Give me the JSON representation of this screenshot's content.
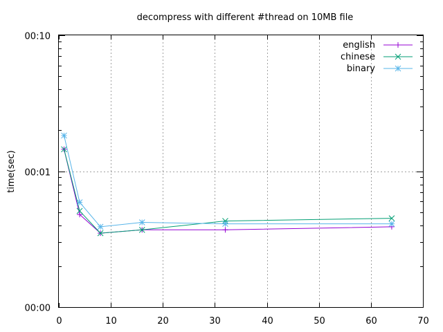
{
  "chart_data": {
    "type": "line",
    "title": "decompress with different #thread on 10MB file",
    "xlabel": "",
    "ylabel": "time(sec)",
    "xlim": [
      0,
      70
    ],
    "x_ticks": [
      0,
      10,
      20,
      30,
      40,
      50,
      60,
      70
    ],
    "y_scale": "log",
    "ylim": [
      0.001,
      0.1
    ],
    "y_ticks": [
      {
        "value": 0.001,
        "label": "00:00"
      },
      {
        "value": 0.01,
        "label": "00:01"
      },
      {
        "value": 0.1,
        "label": "00:10"
      }
    ],
    "grid": true,
    "legend_position": "top-right",
    "x": [
      1,
      4,
      8,
      16,
      32,
      64
    ],
    "series": [
      {
        "name": "english",
        "color": "#9400d3",
        "marker": "plus",
        "values": [
          0.0145,
          0.0048,
          0.0035,
          0.0037,
          0.0037,
          0.0039
        ]
      },
      {
        "name": "chinese",
        "color": "#009e73",
        "marker": "cross",
        "values": [
          0.0145,
          0.0051,
          0.0035,
          0.0037,
          0.0043,
          0.0045
        ]
      },
      {
        "name": "binary",
        "color": "#56b4e9",
        "marker": "star",
        "values": [
          0.0183,
          0.0059,
          0.0039,
          0.0042,
          0.0041,
          0.0041
        ]
      }
    ]
  }
}
